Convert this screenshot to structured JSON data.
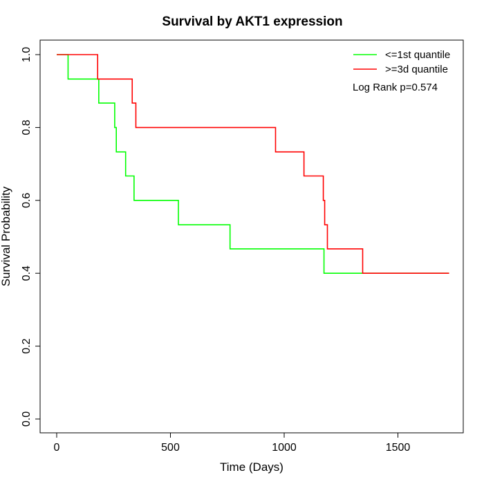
{
  "chart_data": {
    "type": "line",
    "title": "Survival by AKT1 expression",
    "xlabel": "Time (Days)",
    "ylabel": "Survival Probability",
    "xlim": [
      0,
      1750
    ],
    "ylim": [
      0,
      1.0
    ],
    "xticks": [
      0,
      500,
      1000,
      1500
    ],
    "xtick_labels": [
      "0",
      "500",
      "1000",
      "1500"
    ],
    "yticks": [
      0.0,
      0.2,
      0.4,
      0.6,
      0.8,
      1.0
    ],
    "ytick_labels": [
      "0.0",
      "0.2",
      "0.4",
      "0.6",
      "0.8",
      "1.0"
    ],
    "step": true,
    "grid": false,
    "legend_position": "top-right",
    "annotation": "Log Rank p=0.574",
    "series": [
      {
        "name": "<=1st quantile",
        "color": "#00ff00",
        "x": [
          0,
          50,
          185,
          255,
          262,
          303,
          340,
          535,
          762,
          1175,
          1725
        ],
        "y": [
          1.0,
          0.933,
          0.867,
          0.8,
          0.733,
          0.667,
          0.6,
          0.533,
          0.467,
          0.4,
          0.4
        ]
      },
      {
        "name": ">=3d quantile",
        "color": "#ff0000",
        "x": [
          0,
          180,
          332,
          348,
          962,
          1087,
          1172,
          1178,
          1190,
          1345,
          1725
        ],
        "y": [
          1.0,
          0.933,
          0.867,
          0.8,
          0.733,
          0.667,
          0.6,
          0.533,
          0.467,
          0.4,
          0.4
        ]
      }
    ]
  }
}
